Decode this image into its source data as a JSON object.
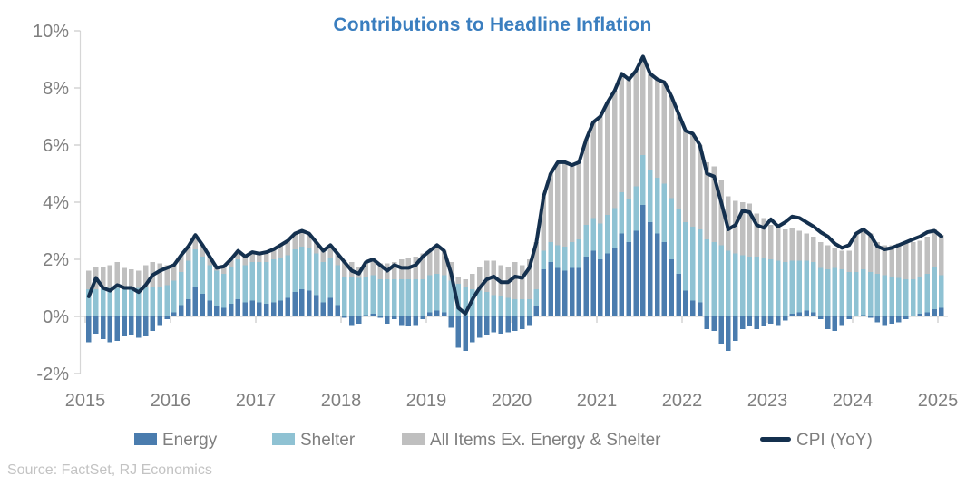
{
  "page": {
    "source": "Source: FactSet, RJ Economics"
  },
  "chart_data": {
    "type": "bar",
    "subtype": "stacked-bars-with-line",
    "title": "Contributions to Headline Inflation",
    "x_start": "2015-01",
    "x_freq": "monthly",
    "x_tick_labels": [
      "2015",
      "2016",
      "2017",
      "2018",
      "2019",
      "2020",
      "2021",
      "2022",
      "2023",
      "2024",
      "2025"
    ],
    "y_tick_labels": [
      "10%",
      "8%",
      "6%",
      "4%",
      "2%",
      "0%",
      "-2%"
    ],
    "y_tick_values": [
      10,
      8,
      6,
      4,
      2,
      0,
      -2
    ],
    "ylim": [
      -2,
      10
    ],
    "grid": "zero-line-only",
    "legend_position": "bottom",
    "colors": {
      "energy": "#4a7cae",
      "shelter": "#8fc2d3",
      "other": "#bfbfbf",
      "cpi": "#14304e",
      "title": "#3a7ebf",
      "axis_text": "#7f7f7f",
      "axis_line": "#d6d6d6",
      "tick": "#c9c9c9",
      "source_text": "#c3c3c3"
    },
    "legend": [
      {
        "label": "Energy",
        "color": "#4a7cae",
        "swatch": "box"
      },
      {
        "label": "Shelter",
        "color": "#8fc2d3",
        "swatch": "box"
      },
      {
        "label": "All Items Ex. Energy & Shelter",
        "color": "#bfbfbf",
        "swatch": "box"
      },
      {
        "label": "CPI (YoY)",
        "color": "#14304e",
        "swatch": "line"
      }
    ],
    "series": {
      "energy": [
        -0.9,
        -0.6,
        -0.8,
        -0.9,
        -0.85,
        -0.7,
        -0.65,
        -0.75,
        -0.7,
        -0.5,
        -0.3,
        -0.1,
        0.15,
        0.4,
        0.6,
        1.05,
        0.8,
        0.55,
        0.35,
        0.3,
        0.45,
        0.6,
        0.5,
        0.55,
        0.5,
        0.45,
        0.5,
        0.55,
        0.65,
        0.85,
        0.95,
        0.9,
        0.75,
        0.5,
        0.65,
        0.4,
        -0.05,
        -0.3,
        -0.25,
        0.05,
        0.1,
        -0.05,
        -0.25,
        -0.1,
        -0.3,
        -0.35,
        -0.3,
        -0.1,
        0.15,
        0.2,
        0.15,
        -0.4,
        -1.1,
        -1.2,
        -0.9,
        -0.75,
        -0.65,
        -0.55,
        -0.6,
        -0.55,
        -0.5,
        -0.45,
        -0.3,
        0.35,
        1.65,
        1.9,
        1.7,
        1.6,
        1.7,
        1.7,
        2.1,
        2.3,
        2.0,
        2.2,
        2.4,
        2.9,
        2.6,
        3.0,
        3.9,
        3.3,
        2.9,
        2.6,
        2.0,
        1.5,
        0.9,
        0.55,
        0.5,
        -0.45,
        -0.5,
        -0.95,
        -1.2,
        -0.85,
        -0.45,
        -0.35,
        -0.45,
        -0.35,
        -0.25,
        -0.3,
        -0.15,
        0.1,
        0.15,
        0.2,
        0.15,
        -0.1,
        -0.45,
        -0.5,
        -0.3,
        -0.1,
        0.0,
        0.05,
        -0.05,
        -0.2,
        -0.3,
        -0.25,
        -0.2,
        -0.1,
        0.0,
        0.1,
        0.15,
        0.25,
        0.3
      ],
      "shelter": [
        0.95,
        0.95,
        1.0,
        1.0,
        1.0,
        1.0,
        1.0,
        1.0,
        1.05,
        1.05,
        1.05,
        1.1,
        1.1,
        1.15,
        1.35,
        1.3,
        1.3,
        1.25,
        1.25,
        1.2,
        1.3,
        1.4,
        1.3,
        1.35,
        1.4,
        1.45,
        1.5,
        1.5,
        1.5,
        1.5,
        1.5,
        1.5,
        1.45,
        1.4,
        1.4,
        1.4,
        1.4,
        1.4,
        1.35,
        1.35,
        1.35,
        1.3,
        1.3,
        1.3,
        1.3,
        1.3,
        1.3,
        1.3,
        1.3,
        1.3,
        1.3,
        1.25,
        1.15,
        1.05,
        0.95,
        0.9,
        0.85,
        0.75,
        0.7,
        0.65,
        0.6,
        0.6,
        0.6,
        0.6,
        0.65,
        0.7,
        0.8,
        0.85,
        0.9,
        1.0,
        1.1,
        1.15,
        1.25,
        1.35,
        1.4,
        1.45,
        1.5,
        1.55,
        1.75,
        1.85,
        1.95,
        2.05,
        2.15,
        2.25,
        2.4,
        2.6,
        2.55,
        2.7,
        2.6,
        2.5,
        2.3,
        2.2,
        2.15,
        2.1,
        2.1,
        2.05,
        2.0,
        1.95,
        1.9,
        1.85,
        1.8,
        1.75,
        1.75,
        1.7,
        1.65,
        1.7,
        1.65,
        1.55,
        1.55,
        1.6,
        1.55,
        1.5,
        1.45,
        1.4,
        1.35,
        1.3,
        1.3,
        1.3,
        1.35,
        1.5,
        1.15
      ],
      "other": [
        0.65,
        0.8,
        0.75,
        0.8,
        0.9,
        0.7,
        0.65,
        0.6,
        0.75,
        0.85,
        0.8,
        0.7,
        0.55,
        0.6,
        0.5,
        0.5,
        0.4,
        0.3,
        0.15,
        0.25,
        0.25,
        0.3,
        0.3,
        0.35,
        0.3,
        0.35,
        0.35,
        0.45,
        0.5,
        0.55,
        0.55,
        0.5,
        0.4,
        0.4,
        0.45,
        0.4,
        0.55,
        0.5,
        0.4,
        0.5,
        0.55,
        0.55,
        0.55,
        0.6,
        0.7,
        0.75,
        0.8,
        0.9,
        0.85,
        1.0,
        0.85,
        0.65,
        0.25,
        0.25,
        0.55,
        0.85,
        1.1,
        1.2,
        1.1,
        1.1,
        1.3,
        1.2,
        1.4,
        1.65,
        1.9,
        2.4,
        2.9,
        2.95,
        2.7,
        2.7,
        3.0,
        3.35,
        3.75,
        3.95,
        4.1,
        4.15,
        4.2,
        4.05,
        3.45,
        3.35,
        3.45,
        3.55,
        3.55,
        3.35,
        3.2,
        3.25,
        2.95,
        2.7,
        2.65,
        2.3,
        1.9,
        1.85,
        1.85,
        1.85,
        1.5,
        1.4,
        1.2,
        1.15,
        1.15,
        1.15,
        1.05,
        0.95,
        0.9,
        0.9,
        0.85,
        0.7,
        0.65,
        0.75,
        1.35,
        1.35,
        1.35,
        1.1,
        1.05,
        1.1,
        1.2,
        1.3,
        1.3,
        1.25,
        1.3,
        1.3,
        1.4
      ],
      "cpi": [
        0.7,
        1.35,
        1.0,
        0.9,
        1.1,
        1.0,
        1.0,
        0.85,
        1.1,
        1.45,
        1.6,
        1.7,
        1.8,
        2.15,
        2.45,
        2.85,
        2.5,
        2.1,
        1.7,
        1.75,
        2.0,
        2.3,
        2.1,
        2.25,
        2.2,
        2.25,
        2.35,
        2.5,
        2.65,
        2.9,
        3.0,
        2.9,
        2.6,
        2.3,
        2.5,
        2.2,
        1.9,
        1.6,
        1.5,
        1.9,
        2.0,
        1.8,
        1.6,
        1.8,
        1.7,
        1.7,
        1.8,
        2.1,
        2.3,
        2.5,
        2.3,
        1.5,
        0.3,
        0.1,
        0.6,
        1.0,
        1.3,
        1.4,
        1.2,
        1.2,
        1.4,
        1.35,
        1.7,
        2.6,
        4.2,
        5.0,
        5.4,
        5.4,
        5.3,
        5.4,
        6.2,
        6.8,
        7.0,
        7.5,
        7.9,
        8.5,
        8.3,
        8.6,
        9.1,
        8.5,
        8.3,
        8.2,
        7.7,
        7.1,
        6.5,
        6.4,
        6.0,
        5.0,
        4.9,
        4.0,
        3.05,
        3.2,
        3.7,
        3.65,
        3.2,
        3.1,
        3.4,
        3.15,
        3.3,
        3.5,
        3.45,
        3.3,
        3.15,
        2.95,
        2.8,
        2.55,
        2.4,
        2.5,
        2.9,
        3.05,
        2.85,
        2.45,
        2.35,
        2.4,
        2.5,
        2.6,
        2.7,
        2.8,
        2.95,
        3.0,
        2.8
      ]
    }
  }
}
